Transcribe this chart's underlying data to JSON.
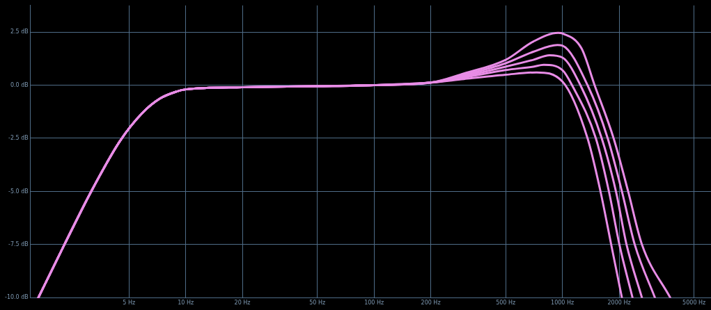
{
  "chart_data": {
    "type": "line",
    "log": "x",
    "grid": true,
    "legend": false,
    "marker": "none",
    "line_style": "solid",
    "xlim": [
      1.5,
      6150
    ],
    "ylim": [
      -10,
      3.75
    ],
    "xticks": [
      {
        "value": 5,
        "label": "5 Hz"
      },
      {
        "value": 10,
        "label": "10 Hz"
      },
      {
        "value": 20,
        "label": "20 Hz"
      },
      {
        "value": 50,
        "label": "50 Hz"
      },
      {
        "value": 100,
        "label": "100 Hz"
      },
      {
        "value": 200,
        "label": "200 Hz"
      },
      {
        "value": 500,
        "label": "500 Hz"
      },
      {
        "value": 1000,
        "label": "1000 Hz"
      },
      {
        "value": 2000,
        "label": "2000 Hz"
      },
      {
        "value": 5000,
        "label": "5000 Hz"
      }
    ],
    "yticks": [
      {
        "value": -10,
        "label": "-10.0 dB"
      },
      {
        "value": -7.5,
        "label": "-7.5 dB"
      },
      {
        "value": -5,
        "label": "-5.0 dB"
      },
      {
        "value": -2.5,
        "label": "-2.5 dB"
      },
      {
        "value": 0,
        "label": "0.0 dB"
      },
      {
        "value": 2.5,
        "label": "2.5 dB"
      }
    ],
    "series": [
      {
        "color": "#e88ce6",
        "x": [
          1.65,
          2.27,
          3.15,
          4.46,
          5.9,
          7.3,
          8.95,
          10,
          20,
          50,
          100,
          200,
          300,
          500,
          700,
          950,
          1000,
          1263,
          1482,
          1870,
          2234,
          2645,
          3740
        ],
        "values": [
          -10,
          -7.5,
          -5,
          -2.65,
          -1.3,
          -0.63,
          -0.3,
          -0.2,
          -0.1,
          -0.05,
          0,
          0.12,
          0.55,
          1.19,
          2.05,
          2.46,
          2.43,
          1.73,
          0,
          -2.5,
          -5,
          -7.5,
          -10
        ]
      },
      {
        "color": "#e88ce6",
        "x": [
          1.65,
          2.27,
          3.15,
          4.46,
          5.9,
          7.3,
          8.95,
          10,
          20,
          50,
          100,
          200,
          300,
          500,
          700,
          940,
          1000,
          1360,
          1740,
          2070,
          2422,
          3100
        ],
        "values": [
          -10,
          -7.5,
          -5,
          -2.65,
          -1.3,
          -0.63,
          -0.3,
          -0.2,
          -0.1,
          -0.05,
          0,
          0.12,
          0.48,
          1.03,
          1.57,
          1.89,
          1.86,
          0,
          -2.5,
          -5,
          -7.5,
          -10
        ]
      },
      {
        "color": "#e88ce6",
        "x": [
          1.65,
          2.27,
          3.15,
          4.46,
          5.9,
          7.3,
          8.95,
          10,
          20,
          50,
          100,
          200,
          300,
          500,
          700,
          855,
          1000,
          1246,
          1617,
          1924,
          2190,
          2645
        ],
        "values": [
          -10,
          -7.5,
          -5,
          -2.65,
          -1.3,
          -0.63,
          -0.3,
          -0.2,
          -0.1,
          -0.05,
          0,
          0.12,
          0.42,
          0.87,
          1.19,
          1.41,
          1.3,
          0,
          -2.5,
          -5,
          -7.5,
          -10
        ]
      },
      {
        "color": "#e88ce6",
        "x": [
          1.65,
          2.27,
          3.15,
          4.46,
          5.9,
          7.3,
          8.95,
          10,
          20,
          50,
          100,
          200,
          300,
          500,
          700,
          796,
          1000,
          1125,
          1505,
          1766,
          2007,
          2357
        ],
        "values": [
          -10,
          -7.5,
          -5,
          -2.65,
          -1.3,
          -0.63,
          -0.3,
          -0.2,
          -0.1,
          -0.05,
          0,
          0.12,
          0.36,
          0.71,
          0.87,
          0.96,
          0.71,
          0,
          -2.5,
          -5,
          -7.5,
          -10
        ]
      },
      {
        "color": "#e88ce6",
        "x": [
          1.65,
          2.27,
          3.15,
          4.46,
          5.9,
          7.3,
          8.95,
          10,
          20,
          50,
          100,
          200,
          300,
          500,
          730,
          1000,
          1360,
          1593,
          1816,
          2070
        ],
        "values": [
          -10,
          -7.5,
          -5,
          -2.65,
          -1.3,
          -0.63,
          -0.3,
          -0.2,
          -0.1,
          -0.05,
          0,
          0.12,
          0.29,
          0.49,
          0.6,
          0.17,
          -2.5,
          -5,
          -7.5,
          -10
        ]
      }
    ]
  }
}
